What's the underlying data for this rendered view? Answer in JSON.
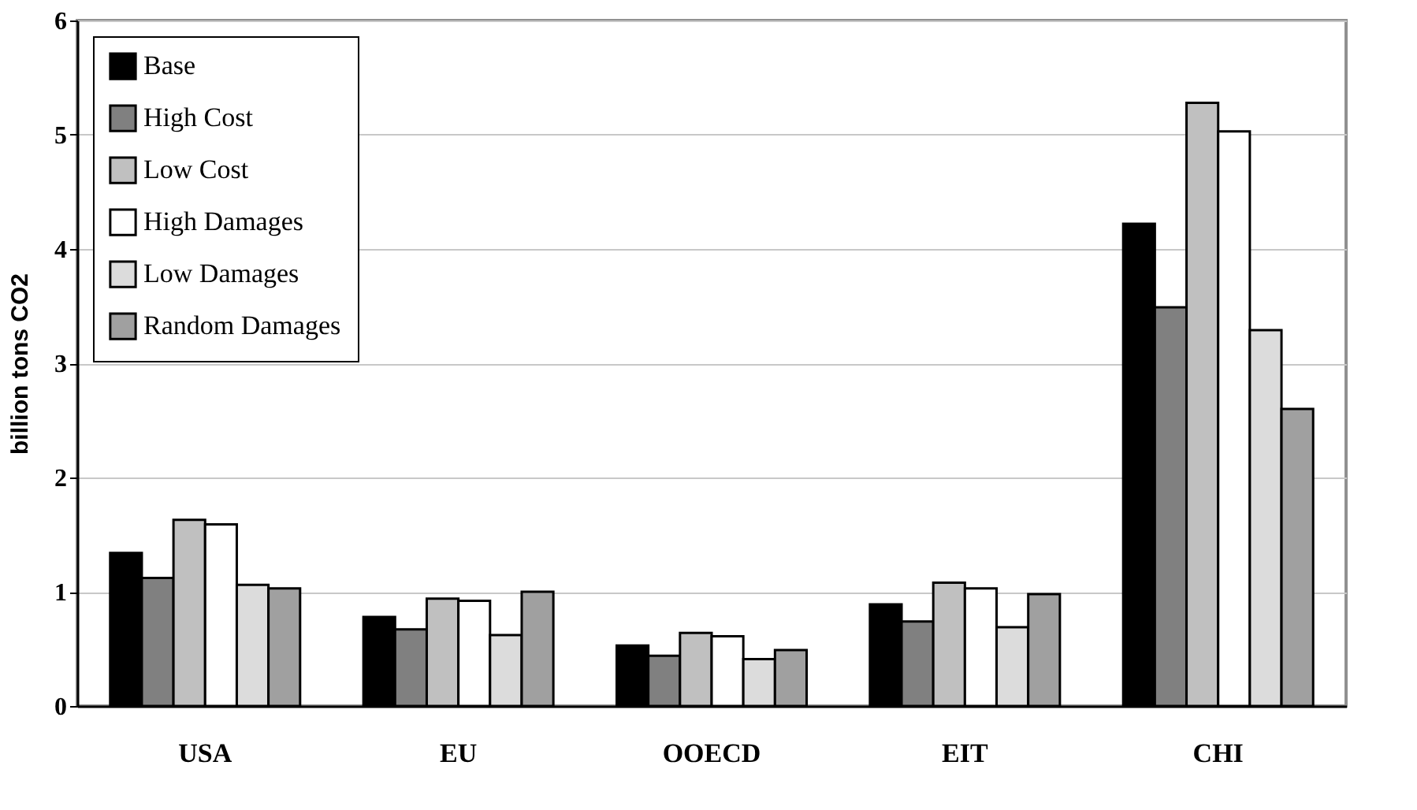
{
  "chart_data": {
    "type": "bar",
    "ylabel": "billion tons CO2",
    "categories": [
      "USA",
      "EU",
      "OOECD",
      "EIT",
      "CHI"
    ],
    "series": [
      {
        "name": "Base",
        "color": "#000000",
        "values": [
          1.34,
          0.78,
          0.53,
          0.89,
          4.22
        ]
      },
      {
        "name": "High Cost",
        "color": "#808080",
        "values": [
          1.12,
          0.67,
          0.44,
          0.74,
          3.49
        ]
      },
      {
        "name": "Low Cost",
        "color": "#c0c0c0",
        "values": [
          1.63,
          0.94,
          0.64,
          1.08,
          5.28
        ]
      },
      {
        "name": "High Damages",
        "color": "#ffffff",
        "values": [
          1.59,
          0.92,
          0.61,
          1.03,
          5.03
        ]
      },
      {
        "name": "Low Damages",
        "color": "#dcdcdc",
        "values": [
          1.06,
          0.62,
          0.41,
          0.69,
          3.29
        ]
      },
      {
        "name": "Random Damages",
        "color": "#a0a0a0",
        "values": [
          1.03,
          1.0,
          0.49,
          0.98,
          2.6
        ]
      }
    ],
    "ylim": [
      0,
      6
    ],
    "yticks": [
      0,
      1,
      2,
      3,
      4,
      5,
      6
    ],
    "grid": "y",
    "legend": "top left"
  }
}
